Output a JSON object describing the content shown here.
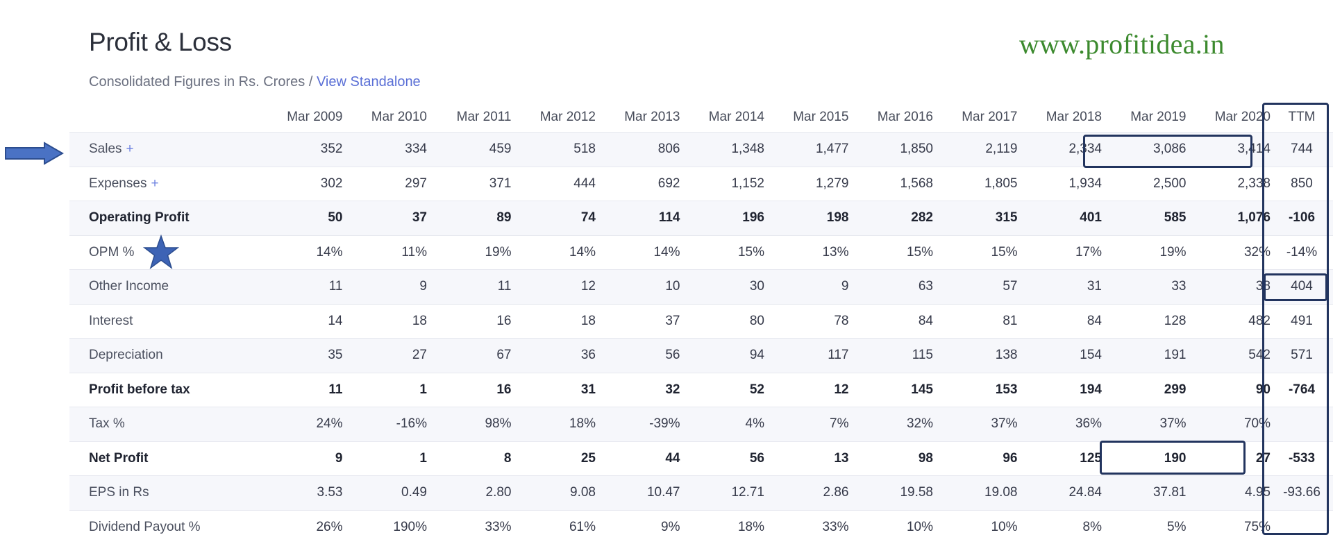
{
  "header": {
    "title": "Profit & Loss",
    "subtitle_text": "Consolidated Figures in Rs. Crores",
    "separator": "/",
    "view_link": "View Standalone",
    "watermark": "www.profitidea.in"
  },
  "table": {
    "columns": [
      "",
      "Mar 2009",
      "Mar 2010",
      "Mar 2011",
      "Mar 2012",
      "Mar 2013",
      "Mar 2014",
      "Mar 2015",
      "Mar 2016",
      "Mar 2017",
      "Mar 2018",
      "Mar 2019",
      "Mar 2020",
      "TTM"
    ],
    "rows": [
      {
        "label": "Sales",
        "expandable": "+",
        "bold": false,
        "values": [
          "352",
          "334",
          "459",
          "518",
          "806",
          "1,348",
          "1,477",
          "1,850",
          "2,119",
          "2,334",
          "3,086",
          "3,414",
          "744"
        ]
      },
      {
        "label": "Expenses",
        "expandable": "+",
        "bold": false,
        "values": [
          "302",
          "297",
          "371",
          "444",
          "692",
          "1,152",
          "1,279",
          "1,568",
          "1,805",
          "1,934",
          "2,500",
          "2,338",
          "850"
        ]
      },
      {
        "label": "Operating Profit",
        "bold": true,
        "values": [
          "50",
          "37",
          "89",
          "74",
          "114",
          "196",
          "198",
          "282",
          "315",
          "401",
          "585",
          "1,076",
          "-106"
        ]
      },
      {
        "label": "OPM %",
        "bold": false,
        "values": [
          "14%",
          "11%",
          "19%",
          "14%",
          "14%",
          "15%",
          "13%",
          "15%",
          "15%",
          "17%",
          "19%",
          "32%",
          "-14%"
        ]
      },
      {
        "label": "Other Income",
        "bold": false,
        "values": [
          "11",
          "9",
          "11",
          "12",
          "10",
          "30",
          "9",
          "63",
          "57",
          "31",
          "33",
          "38",
          "404"
        ]
      },
      {
        "label": "Interest",
        "bold": false,
        "values": [
          "14",
          "18",
          "16",
          "18",
          "37",
          "80",
          "78",
          "84",
          "81",
          "84",
          "128",
          "482",
          "491"
        ]
      },
      {
        "label": "Depreciation",
        "bold": false,
        "values": [
          "35",
          "27",
          "67",
          "36",
          "56",
          "94",
          "117",
          "115",
          "138",
          "154",
          "191",
          "542",
          "571"
        ]
      },
      {
        "label": "Profit before tax",
        "bold": true,
        "values": [
          "11",
          "1",
          "16",
          "31",
          "32",
          "52",
          "12",
          "145",
          "153",
          "194",
          "299",
          "90",
          "-764"
        ]
      },
      {
        "label": "Tax %",
        "bold": false,
        "values": [
          "24%",
          "-16%",
          "98%",
          "18%",
          "-39%",
          "4%",
          "7%",
          "32%",
          "37%",
          "36%",
          "37%",
          "70%",
          ""
        ]
      },
      {
        "label": "Net Profit",
        "bold": true,
        "values": [
          "9",
          "1",
          "8",
          "25",
          "44",
          "56",
          "13",
          "98",
          "96",
          "125",
          "190",
          "27",
          "-533"
        ]
      },
      {
        "label": "EPS in Rs",
        "bold": false,
        "values": [
          "3.53",
          "0.49",
          "2.80",
          "9.08",
          "10.47",
          "12.71",
          "2.86",
          "19.58",
          "19.08",
          "24.84",
          "37.81",
          "4.95",
          "-93.66"
        ]
      },
      {
        "label": "Dividend Payout %",
        "bold": false,
        "values": [
          "26%",
          "190%",
          "33%",
          "61%",
          "9%",
          "18%",
          "33%",
          "10%",
          "10%",
          "8%",
          "5%",
          "75%",
          ""
        ]
      }
    ]
  },
  "annotations": {
    "arrow_icon": "right-arrow-icon",
    "star_icon": "star-icon",
    "highlight_color": "#22345e"
  }
}
